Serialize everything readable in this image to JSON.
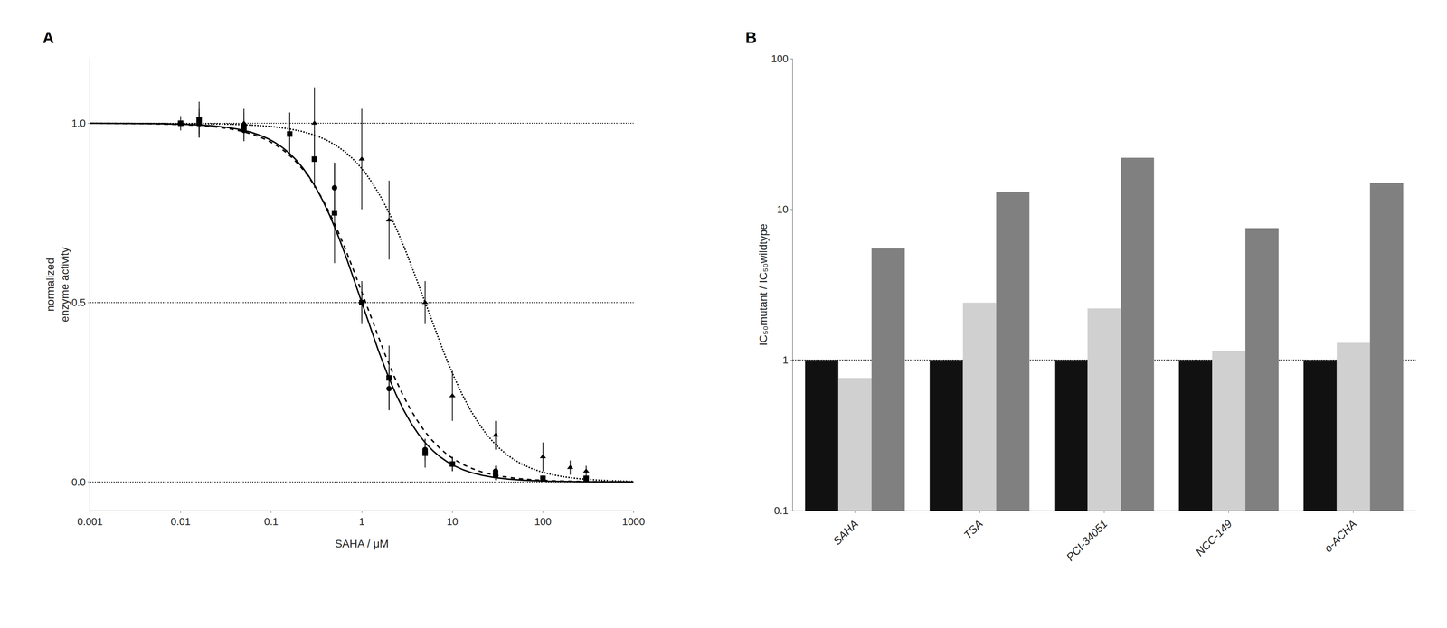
{
  "chart_data": [
    {
      "type": "scatter",
      "title": "A",
      "xlabel": "SAHA / μM",
      "ylabel": "normalized\nenzyme activity",
      "log": "x",
      "grid": false,
      "xlim": [
        0.001,
        1000
      ],
      "ylim": [
        -0.08,
        1.18
      ],
      "xticks": [
        0.001,
        0.01,
        0.1,
        1,
        10,
        100,
        1000
      ],
      "yticks": [
        {
          "value": 0.0,
          "label": "0.0"
        },
        0.5,
        {
          "value": 1.0,
          "label": "1.0"
        }
      ],
      "hlines": [
        0.0,
        0.5,
        1.0
      ],
      "series": [
        {
          "marker": "square",
          "line_style": "solid",
          "color": "#000000",
          "x": [
            0.01,
            0.016,
            0.05,
            0.16,
            0.3,
            0.5,
            1.0,
            2.0,
            5.0,
            10,
            30,
            100,
            300
          ],
          "values": [
            1.0,
            1.01,
            0.99,
            0.97,
            0.9,
            0.75,
            0.5,
            0.29,
            0.08,
            0.05,
            0.02,
            0.01,
            0.01
          ],
          "errors": [
            0.02,
            0.05,
            0.04,
            0.06,
            0.08,
            0.14,
            0.06,
            0.09,
            0.04,
            0.02,
            0.015,
            0.005,
            0.005
          ],
          "fit": {
            "ic50": 1.0,
            "hill": 1.3
          }
        },
        {
          "marker": "circle",
          "line_style": "dashed",
          "color": "#000000",
          "x": [
            0.016,
            0.05,
            0.16,
            0.5,
            1.0,
            2.0,
            5.0,
            10,
            30,
            100,
            300
          ],
          "values": [
            1.0,
            0.98,
            0.97,
            0.82,
            0.5,
            0.26,
            0.09,
            0.05,
            0.03,
            0.01,
            0.01
          ],
          "errors": [
            0.03,
            0.03,
            0.05,
            0.07,
            0.05,
            0.06,
            0.03,
            0.02,
            0.015,
            0.005,
            0.005
          ],
          "fit": {
            "ic50": 1.1,
            "hill": 1.2
          }
        },
        {
          "marker": "triangle",
          "line_style": "dotted",
          "color": "#000000",
          "x": [
            0.016,
            0.05,
            0.3,
            1.0,
            2.0,
            5.0,
            10,
            30,
            100,
            200,
            300
          ],
          "values": [
            1.0,
            1.0,
            1.0,
            0.9,
            0.73,
            0.5,
            0.24,
            0.13,
            0.07,
            0.04,
            0.03
          ],
          "errors": [
            0.04,
            0.04,
            0.1,
            0.14,
            0.11,
            0.06,
            0.07,
            0.04,
            0.04,
            0.02,
            0.015
          ],
          "fit": {
            "ic50": 5.0,
            "hill": 1.2
          }
        }
      ]
    },
    {
      "type": "bar",
      "title": "B",
      "ylabel": "IC₅₀mutant / IC₅₀wildtype",
      "log": "y",
      "grid": false,
      "ylim": [
        0.1,
        100
      ],
      "yticks": [
        0.1,
        1,
        10,
        100
      ],
      "hlines": [
        1.0
      ],
      "categories": [
        "SAHA",
        "TSA",
        "PCI-34051",
        "NCC-149",
        "o-ACHA"
      ],
      "series": [
        {
          "color": "#111111",
          "values": [
            1.0,
            1.0,
            1.0,
            1.0,
            1.0
          ]
        },
        {
          "color": "#d0d0d0",
          "values": [
            0.76,
            2.4,
            2.2,
            1.15,
            1.3
          ]
        },
        {
          "color": "#808080",
          "values": [
            5.5,
            13.0,
            22.0,
            7.5,
            15.0
          ]
        }
      ]
    }
  ]
}
